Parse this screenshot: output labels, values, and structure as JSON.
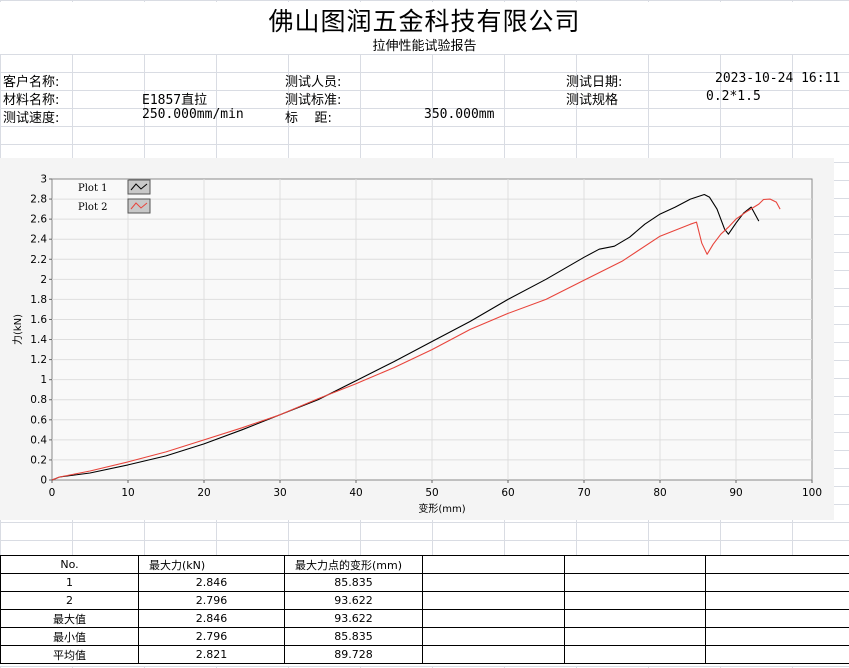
{
  "header": {
    "company": "佛山图润五金科技有限公司",
    "report_title": "拉伸性能试验报告"
  },
  "info": {
    "customer_label": "客户名称:",
    "customer_value": "",
    "tester_label": "测试人员:",
    "tester_value": "",
    "date_label": "测试日期:",
    "date_value": "2023-10-24 16:11",
    "material_label": "材料名称:",
    "material_value": "E1857直拉",
    "standard_label": "测试标准:",
    "standard_value": "",
    "spec_label": "测试规格",
    "spec_value": "0.2*1.5",
    "speed_label": "测试速度:",
    "speed_value": "250.000mm/min",
    "gauge_label": "标    距:",
    "gauge_value": "350.000mm"
  },
  "chart_data": {
    "type": "line",
    "xlabel": "变形(mm)",
    "ylabel": "力(kN)",
    "xlim": [
      0,
      100
    ],
    "ylim": [
      0,
      3
    ],
    "x_ticks": [
      "0",
      "10",
      "20",
      "30",
      "40",
      "50",
      "60",
      "70",
      "80",
      "90",
      "100"
    ],
    "y_ticks": [
      "0",
      "0.2",
      "0.4",
      "0.6",
      "0.8",
      "1",
      "1.2",
      "1.4",
      "1.6",
      "1.8",
      "2",
      "2.2",
      "2.4",
      "2.6",
      "2.8",
      "3"
    ],
    "grid": true,
    "legend_position": "top-left",
    "series": [
      {
        "name": "Plot 1",
        "color": "#000000",
        "points": [
          [
            0,
            0
          ],
          [
            1,
            0.03
          ],
          [
            5,
            0.07
          ],
          [
            10,
            0.15
          ],
          [
            15,
            0.24
          ],
          [
            20,
            0.36
          ],
          [
            25,
            0.5
          ],
          [
            30,
            0.65
          ],
          [
            35,
            0.8
          ],
          [
            40,
            0.99
          ],
          [
            45,
            1.18
          ],
          [
            50,
            1.38
          ],
          [
            55,
            1.58
          ],
          [
            60,
            1.8
          ],
          [
            65,
            2.0
          ],
          [
            70,
            2.22
          ],
          [
            72,
            2.3
          ],
          [
            74,
            2.33
          ],
          [
            76,
            2.42
          ],
          [
            78,
            2.55
          ],
          [
            80,
            2.65
          ],
          [
            82,
            2.72
          ],
          [
            84,
            2.8
          ],
          [
            85.835,
            2.846
          ],
          [
            86.5,
            2.82
          ],
          [
            87.5,
            2.7
          ],
          [
            88.5,
            2.5
          ],
          [
            89,
            2.45
          ],
          [
            90,
            2.56
          ],
          [
            91,
            2.66
          ],
          [
            92,
            2.72
          ],
          [
            93,
            2.58
          ]
        ]
      },
      {
        "name": "Plot 2",
        "color": "#e8453c",
        "points": [
          [
            0,
            0
          ],
          [
            1,
            0.03
          ],
          [
            5,
            0.09
          ],
          [
            10,
            0.18
          ],
          [
            15,
            0.28
          ],
          [
            20,
            0.4
          ],
          [
            25,
            0.52
          ],
          [
            30,
            0.65
          ],
          [
            35,
            0.81
          ],
          [
            40,
            0.96
          ],
          [
            45,
            1.12
          ],
          [
            50,
            1.3
          ],
          [
            55,
            1.5
          ],
          [
            60,
            1.66
          ],
          [
            65,
            1.8
          ],
          [
            70,
            1.99
          ],
          [
            75,
            2.18
          ],
          [
            80,
            2.43
          ],
          [
            84,
            2.55
          ],
          [
            84.8,
            2.57
          ],
          [
            85.5,
            2.36
          ],
          [
            86.2,
            2.25
          ],
          [
            87,
            2.35
          ],
          [
            88,
            2.45
          ],
          [
            89,
            2.52
          ],
          [
            90,
            2.6
          ],
          [
            91.5,
            2.68
          ],
          [
            93,
            2.75
          ],
          [
            93.622,
            2.796
          ],
          [
            94.5,
            2.8
          ],
          [
            95.3,
            2.77
          ],
          [
            95.8,
            2.7
          ]
        ]
      }
    ]
  },
  "table": {
    "headers": [
      "No.",
      "最大力(kN)",
      "最大力点的变形(mm)",
      "",
      "",
      ""
    ],
    "rows": [
      [
        "1",
        "2.846",
        "85.835",
        "",
        "",
        ""
      ],
      [
        "2",
        "2.796",
        "93.622",
        "",
        "",
        ""
      ],
      [
        "最大值",
        "2.846",
        "93.622",
        "",
        "",
        ""
      ],
      [
        "最小值",
        "2.796",
        "85.835",
        "",
        "",
        ""
      ],
      [
        "平均值",
        "2.821",
        "89.728",
        "",
        "",
        ""
      ]
    ]
  }
}
